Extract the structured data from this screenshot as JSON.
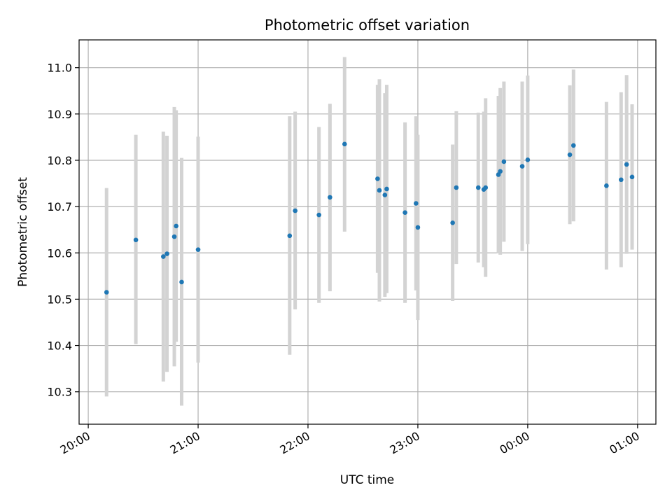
{
  "chart_data": {
    "type": "scatter",
    "title": "Photometric offset variation",
    "xlabel": "UTC time",
    "ylabel": "Photometric offset",
    "grid": true,
    "x_ticks": [
      "20:00",
      "21:00",
      "22:00",
      "23:00",
      "00:00",
      "01:00"
    ],
    "x_tick_times": [
      "2024-01-01T20:00",
      "2024-01-01T21:00",
      "2024-01-01T22:00",
      "2024-01-01T23:00",
      "2024-01-02T00:00",
      "2024-01-02T01:00"
    ],
    "xlim": [
      "2024-01-01T19:55",
      "2024-01-02T01:10"
    ],
    "y_ticks": [
      10.3,
      10.4,
      10.5,
      10.6,
      10.7,
      10.8,
      10.9,
      11.0
    ],
    "ylim": [
      10.23,
      11.06
    ],
    "colors": {
      "point": "#1f77b4",
      "errorbar": "#d3d3d3",
      "grid": "#b0b0b0"
    },
    "points": [
      {
        "x": "2024-01-01T20:10",
        "y": 10.515,
        "lo": 10.29,
        "hi": 10.74
      },
      {
        "x": "2024-01-01T20:26",
        "y": 10.628,
        "lo": 10.403,
        "hi": 10.855
      },
      {
        "x": "2024-01-01T20:41",
        "y": 10.592,
        "lo": 10.322,
        "hi": 10.862
      },
      {
        "x": "2024-01-01T20:43",
        "y": 10.598,
        "lo": 10.343,
        "hi": 10.853
      },
      {
        "x": "2024-01-01T20:47",
        "y": 10.635,
        "lo": 10.355,
        "hi": 10.915
      },
      {
        "x": "2024-01-01T20:48",
        "y": 10.658,
        "lo": 10.408,
        "hi": 10.908
      },
      {
        "x": "2024-01-01T20:51",
        "y": 10.537,
        "lo": 10.27,
        "hi": 10.805
      },
      {
        "x": "2024-01-01T21:00",
        "y": 10.607,
        "lo": 10.363,
        "hi": 10.851
      },
      {
        "x": "2024-01-01T21:50",
        "y": 10.637,
        "lo": 10.38,
        "hi": 10.895
      },
      {
        "x": "2024-01-01T21:53",
        "y": 10.691,
        "lo": 10.478,
        "hi": 10.905
      },
      {
        "x": "2024-01-01T22:06",
        "y": 10.682,
        "lo": 10.492,
        "hi": 10.872
      },
      {
        "x": "2024-01-01T22:12",
        "y": 10.72,
        "lo": 10.517,
        "hi": 10.922
      },
      {
        "x": "2024-01-01T22:20",
        "y": 10.835,
        "lo": 10.646,
        "hi": 11.023
      },
      {
        "x": "2024-01-01T22:38",
        "y": 10.76,
        "lo": 10.557,
        "hi": 10.963
      },
      {
        "x": "2024-01-01T22:39",
        "y": 10.735,
        "lo": 10.495,
        "hi": 10.975
      },
      {
        "x": "2024-01-01T22:42",
        "y": 10.725,
        "lo": 10.505,
        "hi": 10.945
      },
      {
        "x": "2024-01-01T22:43",
        "y": 10.738,
        "lo": 10.513,
        "hi": 10.963
      },
      {
        "x": "2024-01-01T22:53",
        "y": 10.687,
        "lo": 10.492,
        "hi": 10.882
      },
      {
        "x": "2024-01-01T22:59",
        "y": 10.707,
        "lo": 10.519,
        "hi": 10.895
      },
      {
        "x": "2024-01-01T23:00",
        "y": 10.655,
        "lo": 10.455,
        "hi": 10.855
      },
      {
        "x": "2024-01-01T23:19",
        "y": 10.665,
        "lo": 10.496,
        "hi": 10.834
      },
      {
        "x": "2024-01-01T23:21",
        "y": 10.741,
        "lo": 10.576,
        "hi": 10.906
      },
      {
        "x": "2024-01-01T23:33",
        "y": 10.741,
        "lo": 10.579,
        "hi": 10.903
      },
      {
        "x": "2024-01-01T23:36",
        "y": 10.737,
        "lo": 10.569,
        "hi": 10.905
      },
      {
        "x": "2024-01-01T23:37",
        "y": 10.741,
        "lo": 10.548,
        "hi": 10.934
      },
      {
        "x": "2024-01-01T23:44",
        "y": 10.769,
        "lo": 10.599,
        "hi": 10.939
      },
      {
        "x": "2024-01-01T23:45",
        "y": 10.776,
        "lo": 10.596,
        "hi": 10.956
      },
      {
        "x": "2024-01-01T23:47",
        "y": 10.797,
        "lo": 10.624,
        "hi": 10.97
      },
      {
        "x": "2024-01-01T23:57",
        "y": 10.787,
        "lo": 10.604,
        "hi": 10.97
      },
      {
        "x": "2024-01-02T00:00",
        "y": 10.801,
        "lo": 10.619,
        "hi": 10.983
      },
      {
        "x": "2024-01-02T00:23",
        "y": 10.812,
        "lo": 10.662,
        "hi": 10.962
      },
      {
        "x": "2024-01-02T00:25",
        "y": 10.832,
        "lo": 10.668,
        "hi": 10.996
      },
      {
        "x": "2024-01-02T00:43",
        "y": 10.745,
        "lo": 10.564,
        "hi": 10.926
      },
      {
        "x": "2024-01-02T00:51",
        "y": 10.758,
        "lo": 10.569,
        "hi": 10.947
      },
      {
        "x": "2024-01-02T00:54",
        "y": 10.791,
        "lo": 10.598,
        "hi": 10.984
      },
      {
        "x": "2024-01-02T00:57",
        "y": 10.764,
        "lo": 10.607,
        "hi": 10.921
      }
    ]
  }
}
